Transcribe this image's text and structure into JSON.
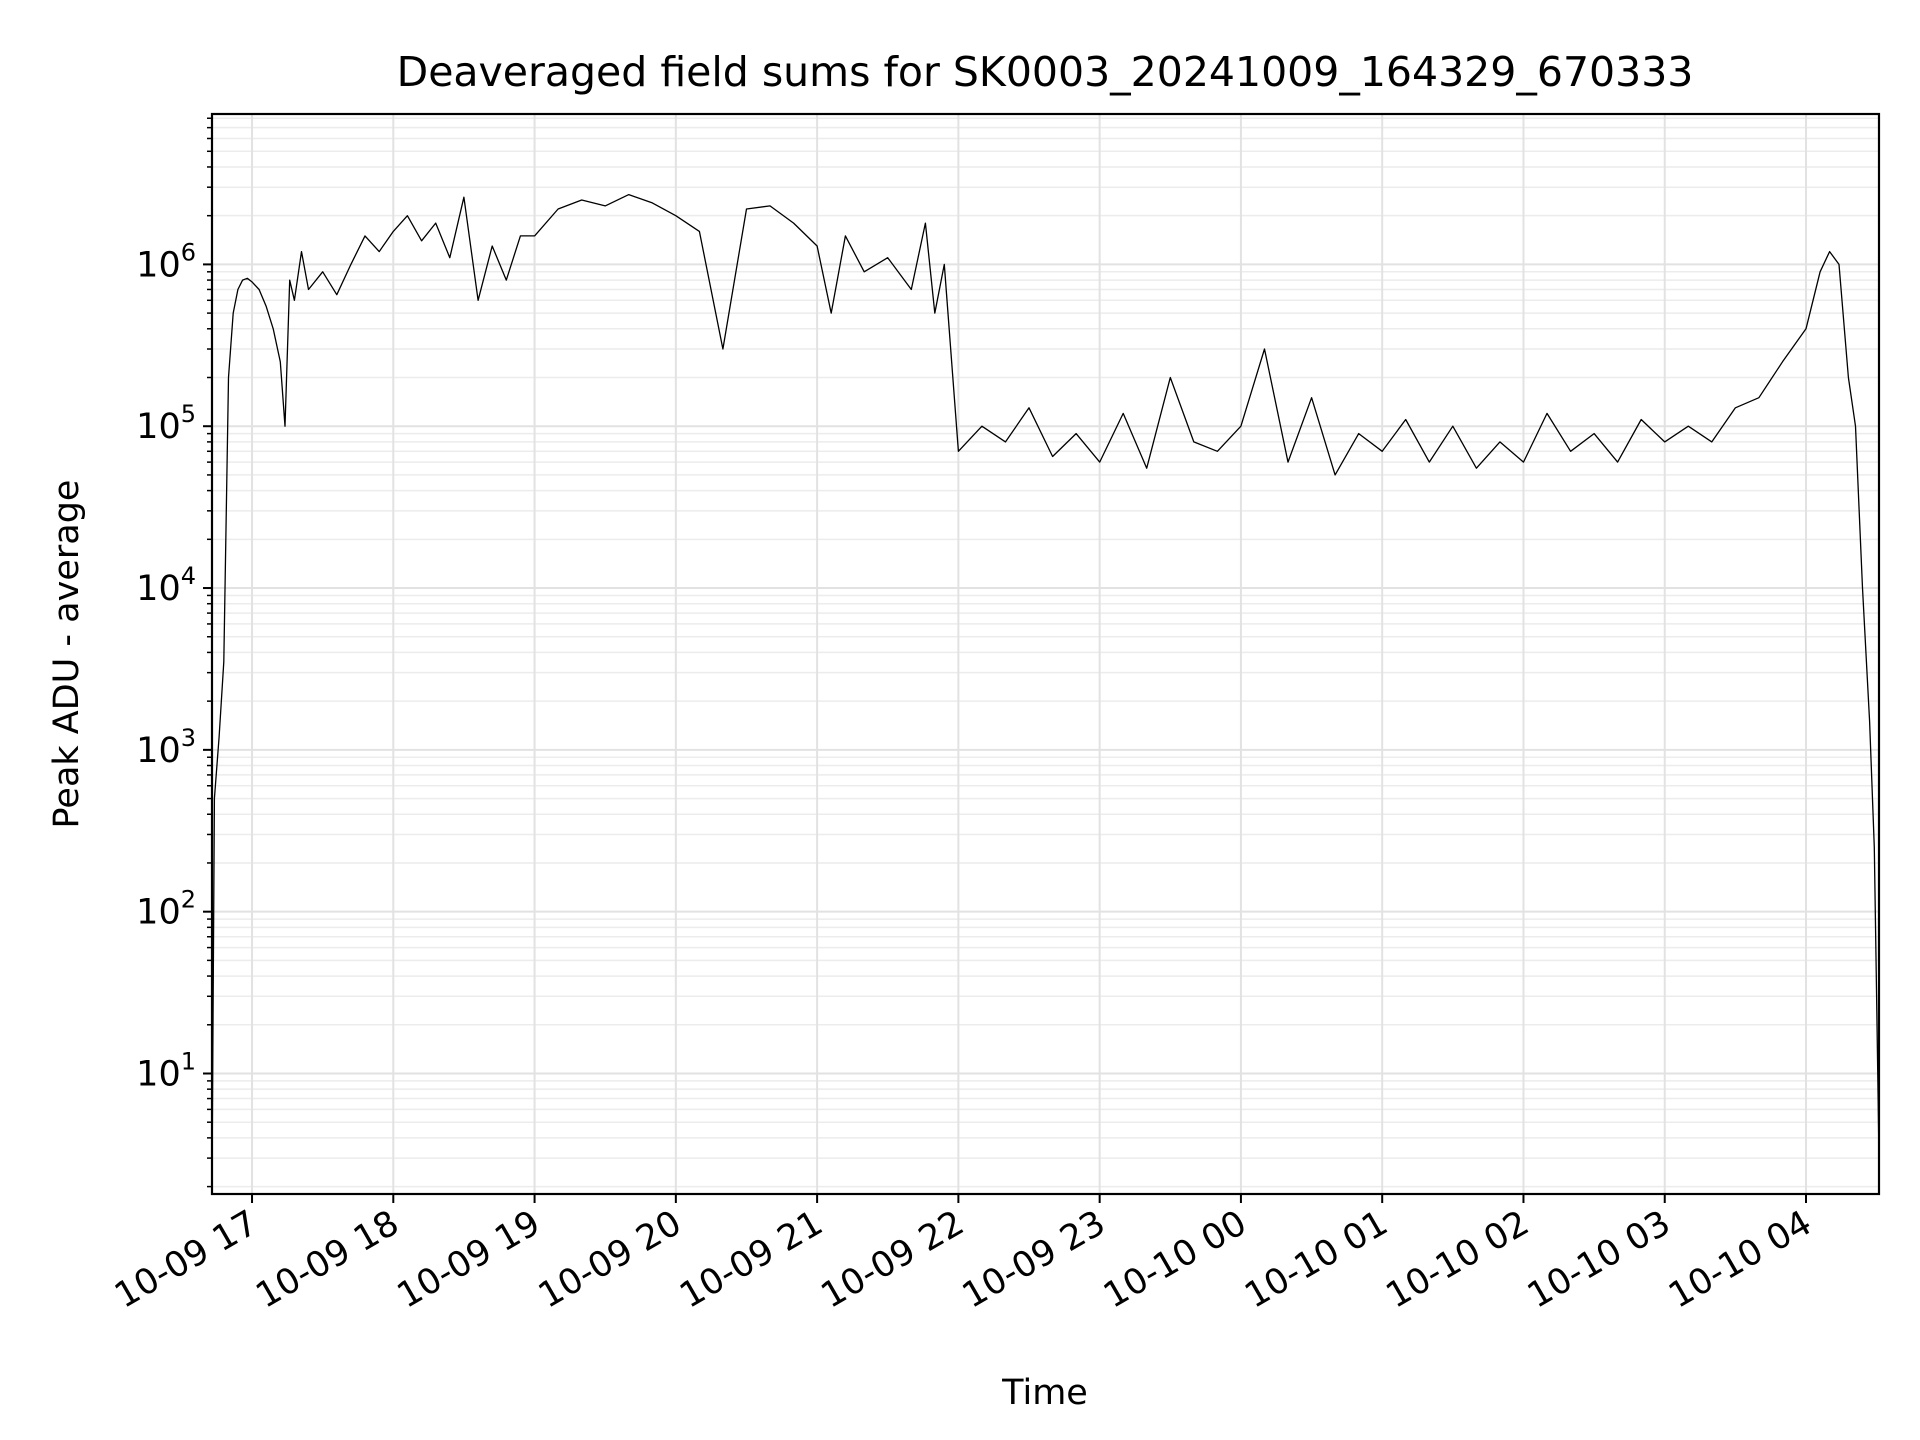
{
  "chart_data": {
    "type": "line",
    "title": "Deaveraged field sums for SK0003_20241009_164329_670333",
    "xlabel": "Time",
    "ylabel": "Peak ADU - average",
    "yscale": "log",
    "xlim": [
      "2024-10-09 16:43",
      "2024-10-10 04:31"
    ],
    "ylim": [
      1.8,
      8500000
    ],
    "grid": "major and minor",
    "x_ticks": [
      {
        "t": "2024-10-09 17:00",
        "label": "10-09 17"
      },
      {
        "t": "2024-10-09 18:00",
        "label": "10-09 18"
      },
      {
        "t": "2024-10-09 19:00",
        "label": "10-09 19"
      },
      {
        "t": "2024-10-09 20:00",
        "label": "10-09 20"
      },
      {
        "t": "2024-10-09 21:00",
        "label": "10-09 21"
      },
      {
        "t": "2024-10-09 22:00",
        "label": "10-09 22"
      },
      {
        "t": "2024-10-09 23:00",
        "label": "10-09 23"
      },
      {
        "t": "2024-10-10 00:00",
        "label": "10-10 00"
      },
      {
        "t": "2024-10-10 01:00",
        "label": "10-10 01"
      },
      {
        "t": "2024-10-10 02:00",
        "label": "10-10 02"
      },
      {
        "t": "2024-10-10 03:00",
        "label": "10-10 03"
      },
      {
        "t": "2024-10-10 04:00",
        "label": "10-10 04"
      }
    ],
    "y_ticks": [
      {
        "value": 10,
        "base": "10",
        "exp": "1"
      },
      {
        "value": 100,
        "base": "10",
        "exp": "2"
      },
      {
        "value": 1000,
        "base": "10",
        "exp": "3"
      },
      {
        "value": 10000,
        "base": "10",
        "exp": "4"
      },
      {
        "value": 100000,
        "base": "10",
        "exp": "5"
      },
      {
        "value": 1000000,
        "base": "10",
        "exp": "6"
      }
    ],
    "series": [
      {
        "color": "#000000",
        "x": [
          "2024-10-09 16:43",
          "2024-10-09 16:44",
          "2024-10-09 16:46",
          "2024-10-09 16:48",
          "2024-10-09 16:50",
          "2024-10-09 16:52",
          "2024-10-09 16:54",
          "2024-10-09 16:56",
          "2024-10-09 16:58",
          "2024-10-09 17:00",
          "2024-10-09 17:03",
          "2024-10-09 17:06",
          "2024-10-09 17:09",
          "2024-10-09 17:12",
          "2024-10-09 17:14",
          "2024-10-09 17:16",
          "2024-10-09 17:18",
          "2024-10-09 17:21",
          "2024-10-09 17:24",
          "2024-10-09 17:30",
          "2024-10-09 17:36",
          "2024-10-09 17:42",
          "2024-10-09 17:48",
          "2024-10-09 17:54",
          "2024-10-09 18:00",
          "2024-10-09 18:06",
          "2024-10-09 18:12",
          "2024-10-09 18:18",
          "2024-10-09 18:24",
          "2024-10-09 18:30",
          "2024-10-09 18:36",
          "2024-10-09 18:42",
          "2024-10-09 18:48",
          "2024-10-09 18:54",
          "2024-10-09 19:00",
          "2024-10-09 19:10",
          "2024-10-09 19:20",
          "2024-10-09 19:30",
          "2024-10-09 19:40",
          "2024-10-09 19:50",
          "2024-10-09 20:00",
          "2024-10-09 20:10",
          "2024-10-09 20:20",
          "2024-10-09 20:30",
          "2024-10-09 20:40",
          "2024-10-09 20:50",
          "2024-10-09 21:00",
          "2024-10-09 21:06",
          "2024-10-09 21:12",
          "2024-10-09 21:20",
          "2024-10-09 21:30",
          "2024-10-09 21:40",
          "2024-10-09 21:46",
          "2024-10-09 21:50",
          "2024-10-09 21:54",
          "2024-10-09 22:00",
          "2024-10-09 22:10",
          "2024-10-09 22:20",
          "2024-10-09 22:30",
          "2024-10-09 22:40",
          "2024-10-09 22:50",
          "2024-10-09 23:00",
          "2024-10-09 23:10",
          "2024-10-09 23:20",
          "2024-10-09 23:30",
          "2024-10-09 23:40",
          "2024-10-09 23:50",
          "2024-10-10 00:00",
          "2024-10-10 00:10",
          "2024-10-10 00:20",
          "2024-10-10 00:30",
          "2024-10-10 00:40",
          "2024-10-10 00:50",
          "2024-10-10 01:00",
          "2024-10-10 01:10",
          "2024-10-10 01:20",
          "2024-10-10 01:30",
          "2024-10-10 01:40",
          "2024-10-10 01:50",
          "2024-10-10 02:00",
          "2024-10-10 02:10",
          "2024-10-10 02:20",
          "2024-10-10 02:30",
          "2024-10-10 02:40",
          "2024-10-10 02:50",
          "2024-10-10 03:00",
          "2024-10-10 03:10",
          "2024-10-10 03:20",
          "2024-10-10 03:30",
          "2024-10-10 03:40",
          "2024-10-10 03:50",
          "2024-10-10 04:00",
          "2024-10-10 04:06",
          "2024-10-10 04:10",
          "2024-10-10 04:14",
          "2024-10-10 04:18",
          "2024-10-10 04:21",
          "2024-10-10 04:24",
          "2024-10-10 04:27",
          "2024-10-10 04:29",
          "2024-10-10 04:30",
          "2024-10-10 04:31"
        ],
        "y": [
          2,
          500,
          1200,
          3500,
          200000,
          500000,
          700000,
          800000,
          820000,
          780000,
          700000,
          550000,
          400000,
          250000,
          100000,
          800000,
          600000,
          1200000,
          700000,
          900000,
          650000,
          1000000,
          1500000,
          1200000,
          1600000,
          2000000,
          1400000,
          1800000,
          1100000,
          2600000,
          600000,
          1300000,
          800000,
          1500000,
          1500000,
          2200000,
          2500000,
          2300000,
          2700000,
          2400000,
          2000000,
          1600000,
          300000,
          2200000,
          2300000,
          1800000,
          1300000,
          500000,
          1500000,
          900000,
          1100000,
          700000,
          1800000,
          500000,
          1000000,
          70000,
          100000,
          80000,
          130000,
          65000,
          90000,
          60000,
          120000,
          55000,
          200000,
          80000,
          70000,
          100000,
          300000,
          60000,
          150000,
          50000,
          90000,
          70000,
          110000,
          60000,
          100000,
          55000,
          80000,
          60000,
          120000,
          70000,
          90000,
          60000,
          110000,
          80000,
          100000,
          80000,
          130000,
          150000,
          250000,
          400000,
          900000,
          1200000,
          1000000,
          200000,
          100000,
          10000,
          1500,
          250,
          30,
          3
        ]
      }
    ]
  }
}
